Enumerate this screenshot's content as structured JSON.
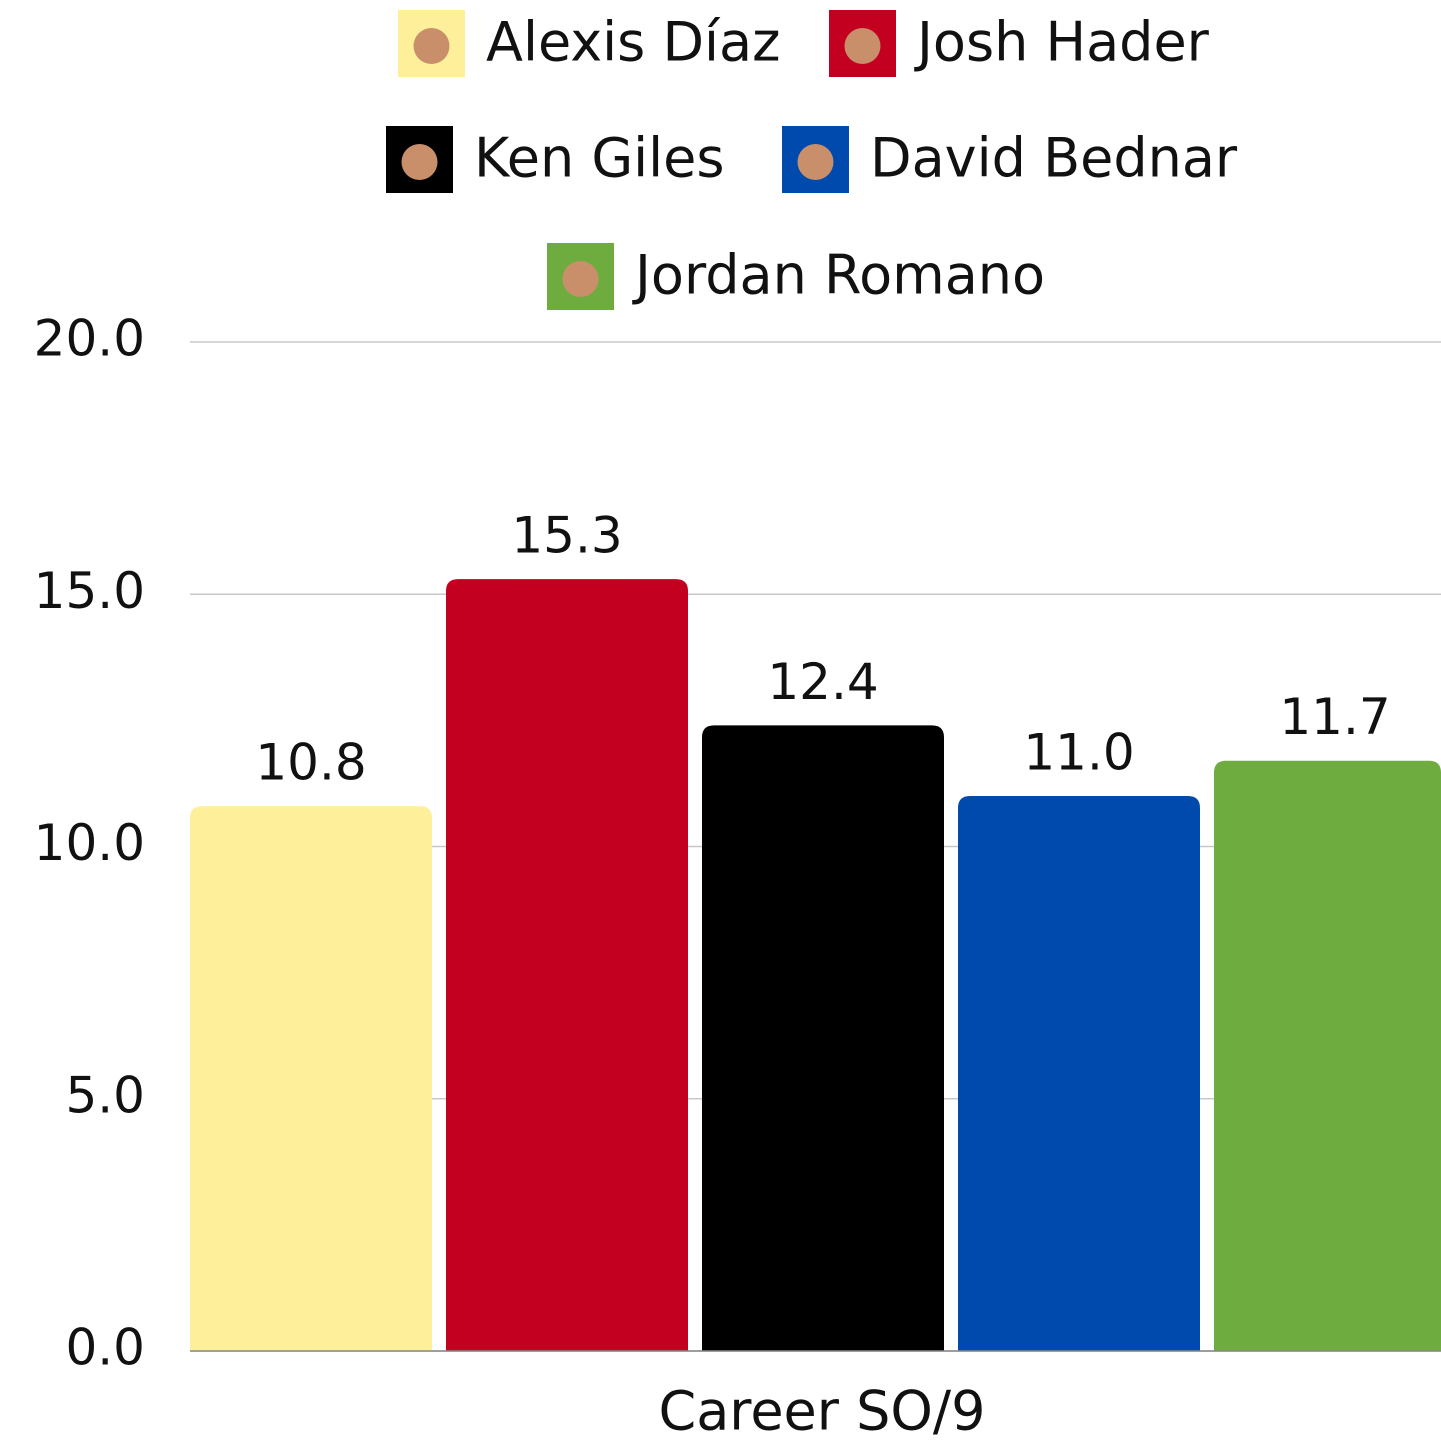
{
  "chart_data": {
    "type": "bar",
    "categories": [
      "Career SO/9"
    ],
    "series": [
      {
        "name": "Alexis Díaz",
        "color": "#fef09a",
        "values": [
          10.8
        ]
      },
      {
        "name": "Josh Hader",
        "color": "#c40020",
        "values": [
          15.3
        ]
      },
      {
        "name": "Ken Giles",
        "color": "#000000",
        "values": [
          12.4
        ]
      },
      {
        "name": "David Bednar",
        "color": "#004aad",
        "values": [
          11
        ],
        "value_labels": [
          "11.0"
        ]
      },
      {
        "name": "Jordan Romano",
        "color": "#6fac3f",
        "values": [
          11.7
        ]
      }
    ],
    "ylim": [
      0,
      20
    ],
    "yticks": [
      {
        "value": 0,
        "label": "0.0"
      },
      {
        "value": 5,
        "label": "5.0"
      },
      {
        "value": 10,
        "label": "10.0"
      },
      {
        "value": 15,
        "label": "15.0"
      },
      {
        "value": 20,
        "label": "20.0"
      }
    ],
    "grid": true,
    "legend": "top"
  }
}
